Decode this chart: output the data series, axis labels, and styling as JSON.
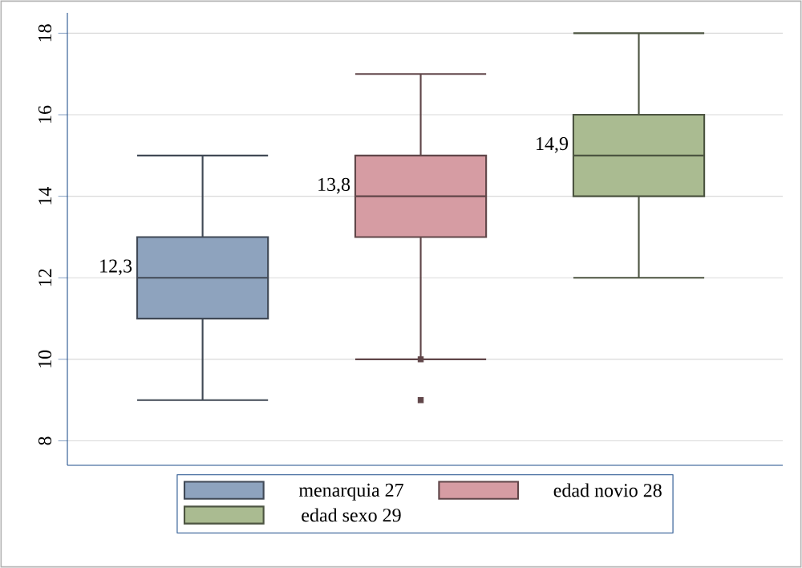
{
  "chart_data": {
    "type": "box",
    "categories": [
      null
    ],
    "series": [
      {
        "name": "menarquia 27",
        "color": "#8ea3be",
        "boxes": [
          {
            "low": 9,
            "q1": 11,
            "median": 12,
            "q3": 13,
            "high": 15
          }
        ]
      },
      {
        "name": "edad novio 28",
        "color": "#d69ca3",
        "boxes": [
          {
            "low": 10,
            "q1": 13,
            "median": 14,
            "q3": 15,
            "high": 17,
            "outliers": [
              10,
              9
            ]
          }
        ]
      },
      {
        "name": "edad sexo 29",
        "color": "#aabb91",
        "boxes": [
          {
            "low": 12,
            "q1": 14,
            "median": 15,
            "q3": 16,
            "high": 18
          }
        ]
      }
    ],
    "annotations": [
      "12,3",
      "13,8",
      "14,9"
    ],
    "ylim": [
      7.4,
      18.5
    ],
    "yticks": [
      8,
      10,
      12,
      14,
      16,
      18
    ],
    "grid": "y",
    "legend": "bottom",
    "marker": "square"
  }
}
